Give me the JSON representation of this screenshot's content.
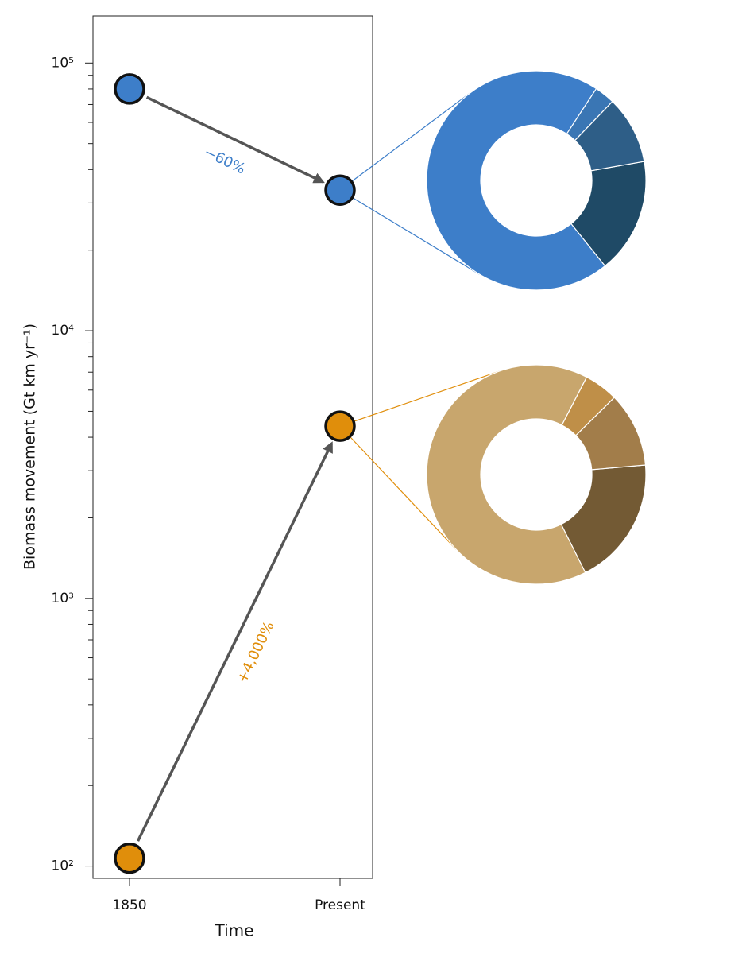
{
  "chart_data": [
    {
      "type": "line",
      "x_label": "Time",
      "y_label": "Biomass movement (Gt km yr⁻¹)",
      "categories": [
        "1850",
        "Present"
      ],
      "log_y": true,
      "ylim": [
        90,
        150000
      ],
      "yticks": [
        {
          "value": 100,
          "label": "10²"
        },
        {
          "value": 1000,
          "label": "10³"
        },
        {
          "value": 10000,
          "label": "10⁴"
        },
        {
          "value": 100000,
          "label": "10⁵"
        }
      ],
      "series": [
        {
          "color": "#3d7ec9",
          "values": [
            80000,
            33500
          ],
          "annotation": "−60%"
        },
        {
          "color": "#e08e0b",
          "values": [
            107,
            4400
          ],
          "annotation": "+4,000%"
        }
      ]
    },
    {
      "type": "donut",
      "values": [
        17,
        70,
        3,
        10
      ],
      "colors": [
        "#1f4a66",
        "#3d7ec9",
        "#3a76b4",
        "#2e5e87"
      ]
    },
    {
      "type": "donut",
      "values": [
        19,
        65,
        5,
        11
      ],
      "colors": [
        "#735a34",
        "#c8a66d",
        "#bf8f48",
        "#a27d4a"
      ]
    }
  ]
}
